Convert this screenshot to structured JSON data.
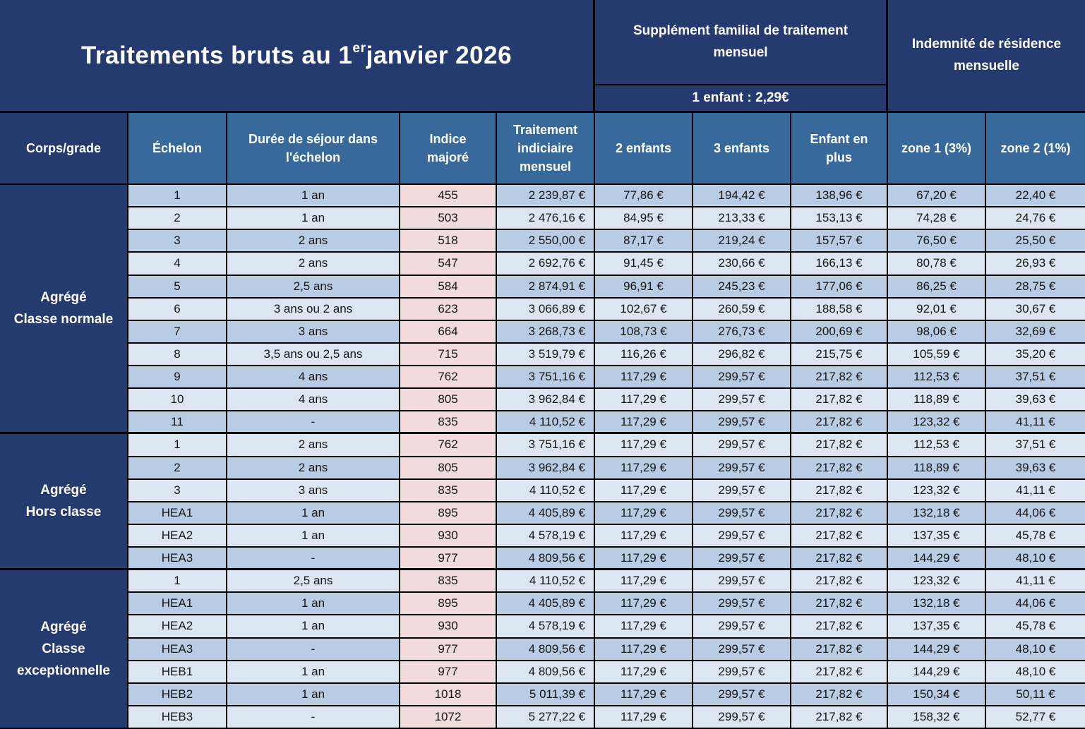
{
  "title": {
    "prefix": "Traitements bruts au 1",
    "superscript": "er",
    "suffix": " janvier 2026"
  },
  "header": {
    "supplement_title": "Supplément familial de traitement mensuel",
    "supplement_note": "1 enfant : 2,29€",
    "residence_title": "Indemnité de résidence mensuelle"
  },
  "columns": {
    "headers": [
      "Corps/grade",
      "Échelon",
      "Durée de séjour dans l'échelon",
      "Indice majoré",
      "Traitement indiciaire mensuel",
      "2 enfants",
      "3 enfants",
      "Enfant en plus",
      "zone 1 (3%)",
      "zone 2 (1%)"
    ],
    "keys": [
      "echelon",
      "duree-sejour",
      "indice-majore",
      "traitement-indiciaire",
      "2-enfants",
      "3-enfants",
      "enfant-en-plus",
      "zone-1",
      "zone-2"
    ]
  },
  "colors": {
    "navy": "#253a6f",
    "header_blue": "#376a9b",
    "row_dark": "#b8cce4",
    "row_light": "#dce6f1",
    "indice_pink": "#f2dcdb",
    "border": "#000000",
    "text": "#151515"
  },
  "sections": [
    {
      "label_lines": [
        "Agrégé",
        "Classe normale"
      ],
      "rows": [
        [
          "1",
          "1 an",
          "455",
          "2 239,87 €",
          "77,86 €",
          "194,42 €",
          "138,96 €",
          "67,20 €",
          "22,40 €"
        ],
        [
          "2",
          "1 an",
          "503",
          "2 476,16 €",
          "84,95 €",
          "213,33 €",
          "153,13 €",
          "74,28 €",
          "24,76 €"
        ],
        [
          "3",
          "2 ans",
          "518",
          "2 550,00 €",
          "87,17 €",
          "219,24 €",
          "157,57 €",
          "76,50 €",
          "25,50 €"
        ],
        [
          "4",
          "2 ans",
          "547",
          "2 692,76 €",
          "91,45 €",
          "230,66 €",
          "166,13 €",
          "80,78 €",
          "26,93 €"
        ],
        [
          "5",
          "2,5 ans",
          "584",
          "2 874,91 €",
          "96,91 €",
          "245,23 €",
          "177,06 €",
          "86,25 €",
          "28,75 €"
        ],
        [
          "6",
          "3 ans ou 2 ans",
          "623",
          "3 066,89 €",
          "102,67 €",
          "260,59 €",
          "188,58 €",
          "92,01 €",
          "30,67 €"
        ],
        [
          "7",
          "3 ans",
          "664",
          "3 268,73 €",
          "108,73 €",
          "276,73 €",
          "200,69 €",
          "98,06 €",
          "32,69 €"
        ],
        [
          "8",
          "3,5 ans ou 2,5 ans",
          "715",
          "3 519,79 €",
          "116,26 €",
          "296,82 €",
          "215,75 €",
          "105,59 €",
          "35,20 €"
        ],
        [
          "9",
          "4 ans",
          "762",
          "3 751,16 €",
          "117,29 €",
          "299,57 €",
          "217,82 €",
          "112,53 €",
          "37,51 €"
        ],
        [
          "10",
          "4 ans",
          "805",
          "3 962,84 €",
          "117,29 €",
          "299,57 €",
          "217,82 €",
          "118,89 €",
          "39,63 €"
        ],
        [
          "11",
          "-",
          "835",
          "4 110,52 €",
          "117,29 €",
          "299,57 €",
          "217,82 €",
          "123,32 €",
          "41,11 €"
        ]
      ]
    },
    {
      "label_lines": [
        "Agrégé",
        "Hors classe"
      ],
      "rows": [
        [
          "1",
          "2 ans",
          "762",
          "3 751,16 €",
          "117,29 €",
          "299,57 €",
          "217,82 €",
          "112,53 €",
          "37,51 €"
        ],
        [
          "2",
          "2 ans",
          "805",
          "3 962,84 €",
          "117,29 €",
          "299,57 €",
          "217,82 €",
          "118,89 €",
          "39,63 €"
        ],
        [
          "3",
          "3 ans",
          "835",
          "4 110,52 €",
          "117,29 €",
          "299,57 €",
          "217,82 €",
          "123,32 €",
          "41,11 €"
        ],
        [
          "HEA1",
          "1 an",
          "895",
          "4 405,89 €",
          "117,29 €",
          "299,57 €",
          "217,82 €",
          "132,18 €",
          "44,06 €"
        ],
        [
          "HEA2",
          "1 an",
          "930",
          "4 578,19 €",
          "117,29 €",
          "299,57 €",
          "217,82 €",
          "137,35 €",
          "45,78 €"
        ],
        [
          "HEA3",
          "-",
          "977",
          "4 809,56 €",
          "117,29 €",
          "299,57 €",
          "217,82 €",
          "144,29 €",
          "48,10 €"
        ]
      ]
    },
    {
      "label_lines": [
        "Agrégé",
        "Classe",
        "exceptionnelle"
      ],
      "rows": [
        [
          "1",
          "2,5 ans",
          "835",
          "4 110,52 €",
          "117,29 €",
          "299,57 €",
          "217,82 €",
          "123,32 €",
          "41,11 €"
        ],
        [
          "HEA1",
          "1 an",
          "895",
          "4 405,89 €",
          "117,29 €",
          "299,57 €",
          "217,82 €",
          "132,18 €",
          "44,06 €"
        ],
        [
          "HEA2",
          "1 an",
          "930",
          "4 578,19 €",
          "117,29 €",
          "299,57 €",
          "217,82 €",
          "137,35 €",
          "45,78 €"
        ],
        [
          "HEA3",
          "-",
          "977",
          "4 809,56 €",
          "117,29 €",
          "299,57 €",
          "217,82 €",
          "144,29 €",
          "48,10 €"
        ],
        [
          "HEB1",
          "1 an",
          "977",
          "4 809,56 €",
          "117,29 €",
          "299,57 €",
          "217,82 €",
          "144,29 €",
          "48,10 €"
        ],
        [
          "HEB2",
          "1 an",
          "1018",
          "5 011,39 €",
          "117,29 €",
          "299,57 €",
          "217,82 €",
          "150,34 €",
          "50,11 €"
        ],
        [
          "HEB3",
          "-",
          "1072",
          "5 277,22 €",
          "117,29 €",
          "299,57 €",
          "217,82 €",
          "158,32 €",
          "52,77 €"
        ]
      ]
    }
  ]
}
